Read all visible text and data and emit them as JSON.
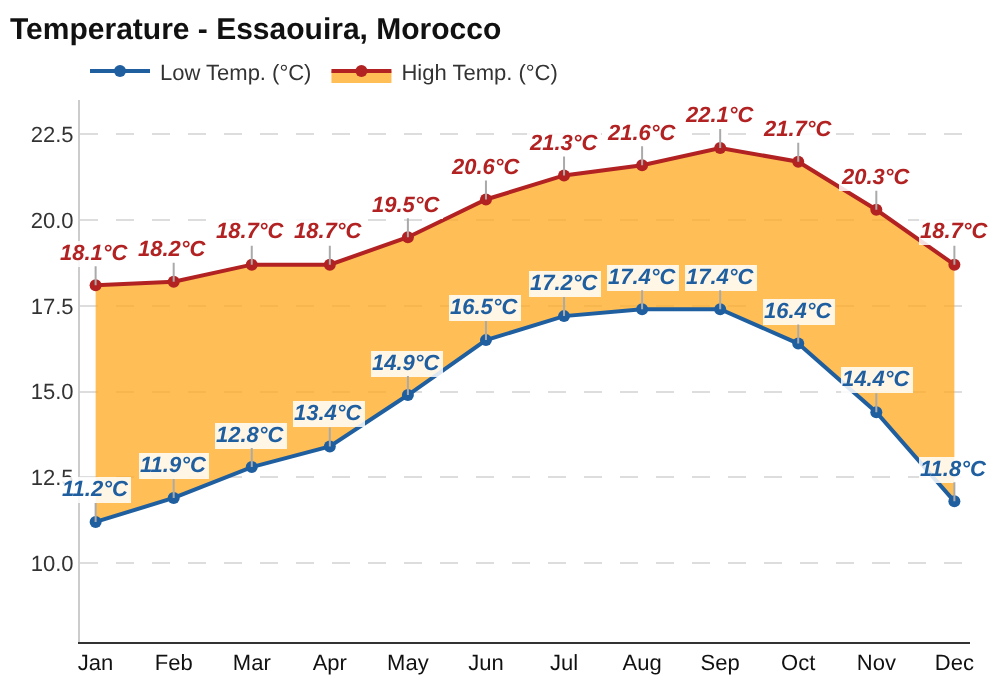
{
  "chart_data": {
    "type": "line",
    "title": "Temperature - Essaouira, Morocco",
    "categories": [
      "Jan",
      "Feb",
      "Mar",
      "Apr",
      "May",
      "Jun",
      "Jul",
      "Aug",
      "Sep",
      "Oct",
      "Nov",
      "Dec"
    ],
    "series": [
      {
        "name": "Low Temp. (°C)",
        "color": "#1f5fa0",
        "values": [
          11.2,
          11.9,
          12.8,
          13.4,
          14.9,
          16.5,
          17.2,
          17.4,
          17.4,
          16.4,
          14.4,
          11.8
        ],
        "value_labels": [
          "11.2°C",
          "11.9°C",
          "12.8°C",
          "13.4°C",
          "14.9°C",
          "16.5°C",
          "17.2°C",
          "17.4°C",
          "17.4°C",
          "16.4°C",
          "14.4°C",
          "11.8°C"
        ]
      },
      {
        "name": "High Temp. (°C)",
        "type": "area",
        "color": "#b22222",
        "values": [
          18.1,
          18.2,
          18.7,
          18.7,
          19.5,
          20.6,
          21.3,
          21.6,
          22.1,
          21.7,
          20.3,
          18.7
        ],
        "value_labels": [
          "18.1°C",
          "18.2°C",
          "18.7°C",
          "18.7°C",
          "19.5°C",
          "20.6°C",
          "21.3°C",
          "21.6°C",
          "22.1°C",
          "21.7°C",
          "20.3°C",
          "18.7°C"
        ]
      }
    ],
    "ylim": [
      7.7,
      23.5
    ],
    "yticks": [
      {
        "value": 10,
        "label": "10.0"
      },
      {
        "value": 12.5,
        "label": "12.5"
      },
      {
        "value": 15,
        "label": "15.0"
      },
      {
        "value": 17.5,
        "label": "17.5"
      },
      {
        "value": 20,
        "label": "20.0"
      },
      {
        "value": 22.5,
        "label": "22.5"
      }
    ],
    "grid": "y",
    "legend": "top left",
    "marker": "circle",
    "line_style": "solid"
  }
}
